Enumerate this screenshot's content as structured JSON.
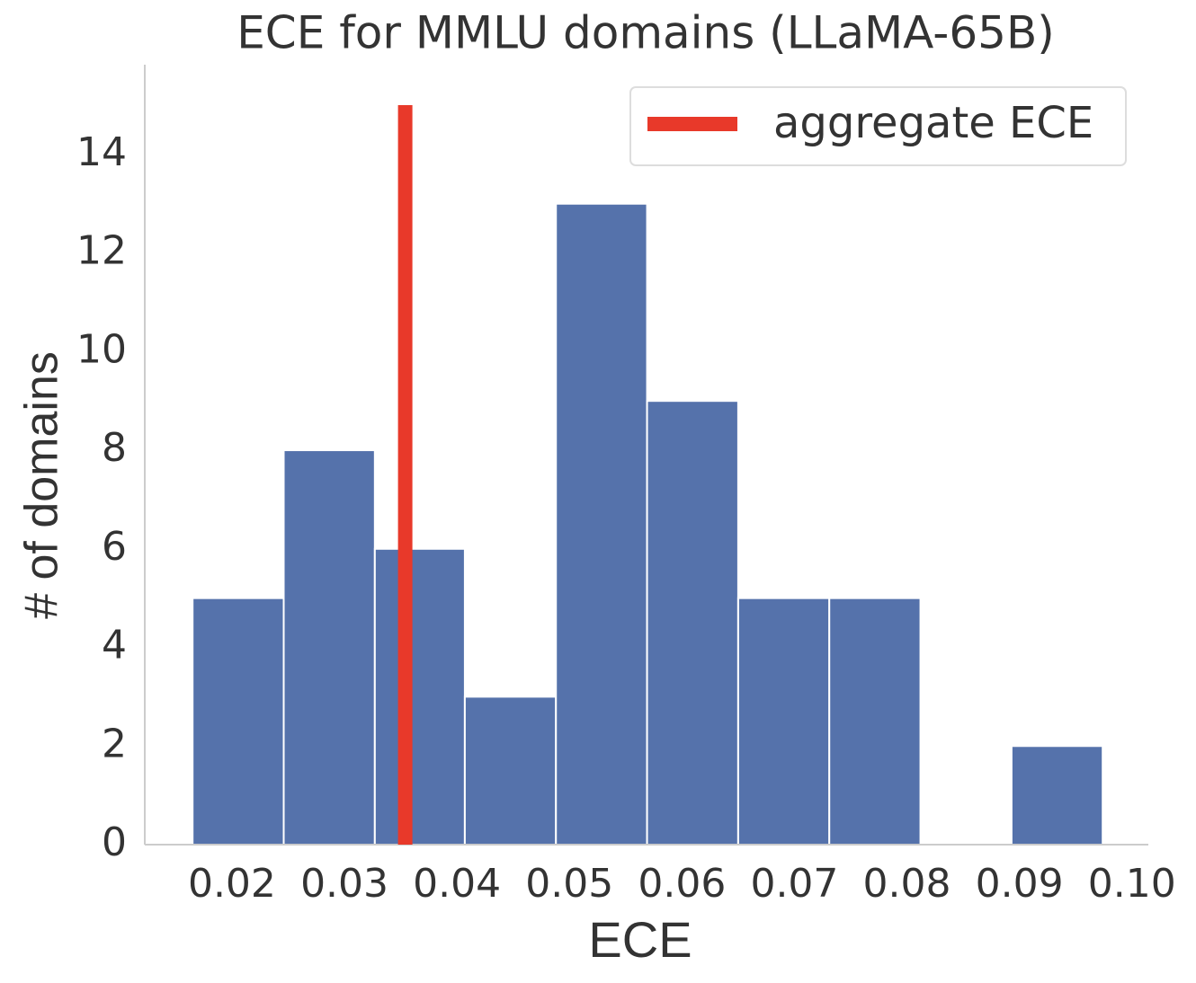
{
  "chart_data": {
    "type": "histogram",
    "title": "ECE for MMLU domains (LLaMA-65B)",
    "xlabel": "ECE",
    "ylabel": "# of domains",
    "bins": [
      0.0165,
      0.0246,
      0.0327,
      0.0407,
      0.0488,
      0.0569,
      0.065,
      0.0731,
      0.0812,
      0.0893,
      0.0974
    ],
    "counts": [
      5,
      8,
      6,
      3,
      13,
      9,
      5,
      5,
      0,
      2
    ],
    "color": "#5572ab",
    "vline": {
      "name": "aggregate ECE",
      "x": 0.0354,
      "ymax": 15,
      "color": "#e8392a"
    },
    "xlim": [
      0.01225,
      0.10146
    ],
    "ylim": [
      0,
      15.82
    ],
    "xticks": [
      0.02,
      0.03,
      0.04,
      0.05,
      0.06,
      0.07,
      0.08,
      0.09,
      {
        "value": 0.1,
        "label": "0.10"
      }
    ],
    "yticks": [
      0,
      2,
      4,
      6,
      8,
      10,
      12,
      14
    ],
    "grid": false,
    "legend": "upper right"
  }
}
